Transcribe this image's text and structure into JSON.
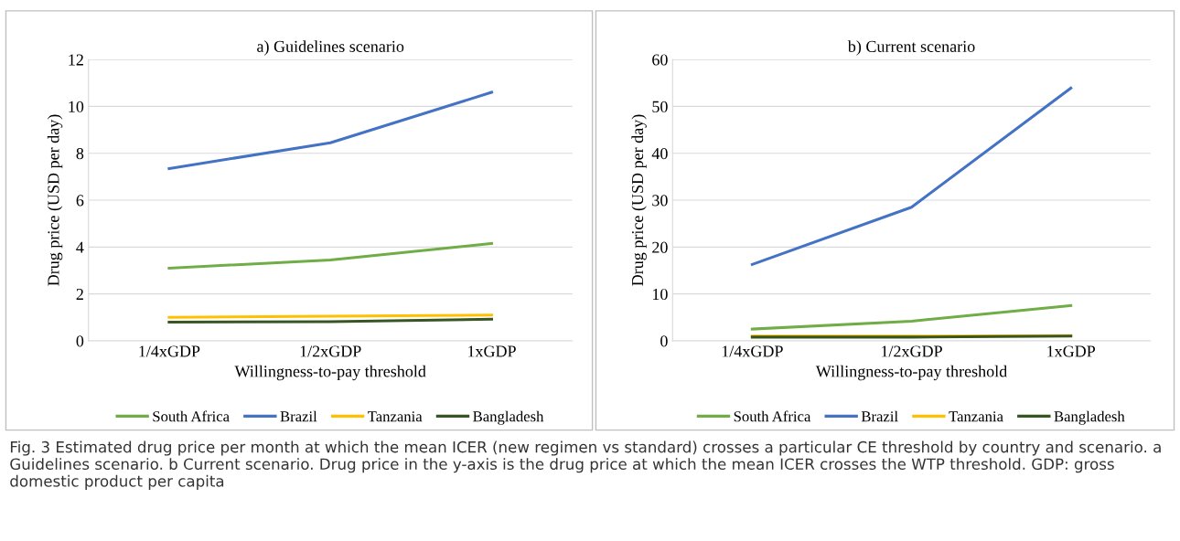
{
  "chart_data": [
    {
      "type": "line",
      "title": "a) Guidelines scenario",
      "xlabel": "Willingness-to-pay threshold",
      "ylabel": "Drug price (USD per day)",
      "categories": [
        "1/4xGDP",
        "1/2xGDP",
        "1xGDP"
      ],
      "series": [
        {
          "name": "South Africa",
          "color": "#70ad47",
          "values": [
            3.1,
            3.45,
            4.15
          ]
        },
        {
          "name": "Brazil",
          "color": "#4472c4",
          "values": [
            7.35,
            8.45,
            10.6
          ]
        },
        {
          "name": "Tanzania",
          "color": "#ffc000",
          "values": [
            1.0,
            1.05,
            1.1
          ]
        },
        {
          "name": "Bangladesh",
          "color": "#375623",
          "values": [
            0.8,
            0.82,
            0.92
          ]
        }
      ],
      "ylim": [
        0,
        12
      ],
      "yticks": [
        0,
        2,
        4,
        6,
        8,
        10,
        12
      ],
      "grid": "y",
      "legend": "bottom",
      "marker": "none",
      "line_style": "solid",
      "annotations": [
        "Fig. 3 Estimated drug price per month at which the mean ICER (new regimen vs standard) crosses a particular CE threshold by country and scenario. a Guidelines scenario. b Current scenario. Drug price in the y-axis is the drug price at which the mean ICER crosses the WTP threshold. GDP: gross domestic product per capita"
      ]
    },
    {
      "type": "line",
      "title": "b) Current scenario",
      "xlabel": "Willingness-to-pay threshold",
      "ylabel": "Drug price (USD per day)",
      "categories": [
        "1/4xGDP",
        "1/2xGDP",
        "1xGDP"
      ],
      "series": [
        {
          "name": "South Africa",
          "color": "#70ad47",
          "values": [
            2.5,
            4.2,
            7.5
          ]
        },
        {
          "name": "Brazil",
          "color": "#4472c4",
          "values": [
            16.3,
            28.5,
            53.9
          ]
        },
        {
          "name": "Tanzania",
          "color": "#ffc000",
          "values": [
            1.0,
            1.0,
            1.1
          ]
        },
        {
          "name": "Bangladesh",
          "color": "#375623",
          "values": [
            0.8,
            0.8,
            1.0
          ]
        }
      ],
      "ylim": [
        0,
        60
      ],
      "yticks": [
        0,
        10,
        20,
        30,
        40,
        50,
        60
      ],
      "grid": "y",
      "legend": "bottom",
      "marker": "none",
      "line_style": "solid"
    }
  ]
}
